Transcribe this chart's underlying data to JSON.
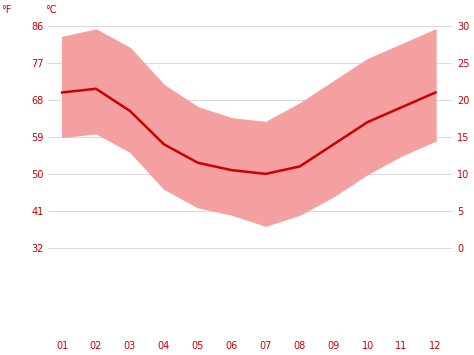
{
  "months": [
    1,
    2,
    3,
    4,
    5,
    6,
    7,
    8,
    9,
    10,
    11,
    12
  ],
  "month_labels": [
    "01",
    "02",
    "03",
    "04",
    "05",
    "06",
    "07",
    "08",
    "09",
    "10",
    "11",
    "12"
  ],
  "mean_temp_c": [
    21.0,
    21.5,
    18.5,
    14.0,
    11.5,
    10.5,
    10.0,
    11.0,
    14.0,
    17.0,
    19.0,
    21.0
  ],
  "high_temp_c": [
    28.5,
    29.5,
    27.0,
    22.0,
    19.0,
    17.5,
    17.0,
    19.5,
    22.5,
    25.5,
    27.5,
    29.5
  ],
  "low_temp_c": [
    15.0,
    15.5,
    13.0,
    8.0,
    5.5,
    4.5,
    3.0,
    4.5,
    7.0,
    10.0,
    12.5,
    14.5
  ],
  "band_color": "#f5a0a0",
  "line_color": "#cc0000",
  "line_width": 1.8,
  "bg_color": "#ffffff",
  "grid_color": "#cccccc",
  "text_color": "#cc0000",
  "yticks_c": [
    0,
    5,
    10,
    15,
    20,
    25,
    30
  ],
  "yticks_f": [
    32,
    41,
    50,
    59,
    68,
    77,
    86
  ],
  "ylim_c_min": -12,
  "ylim_c_max": 32,
  "xlim_min": 0.6,
  "xlim_max": 12.5,
  "figsize": [
    4.74,
    3.55
  ],
  "dpi": 100,
  "label_f": "°F",
  "label_c": "°C"
}
